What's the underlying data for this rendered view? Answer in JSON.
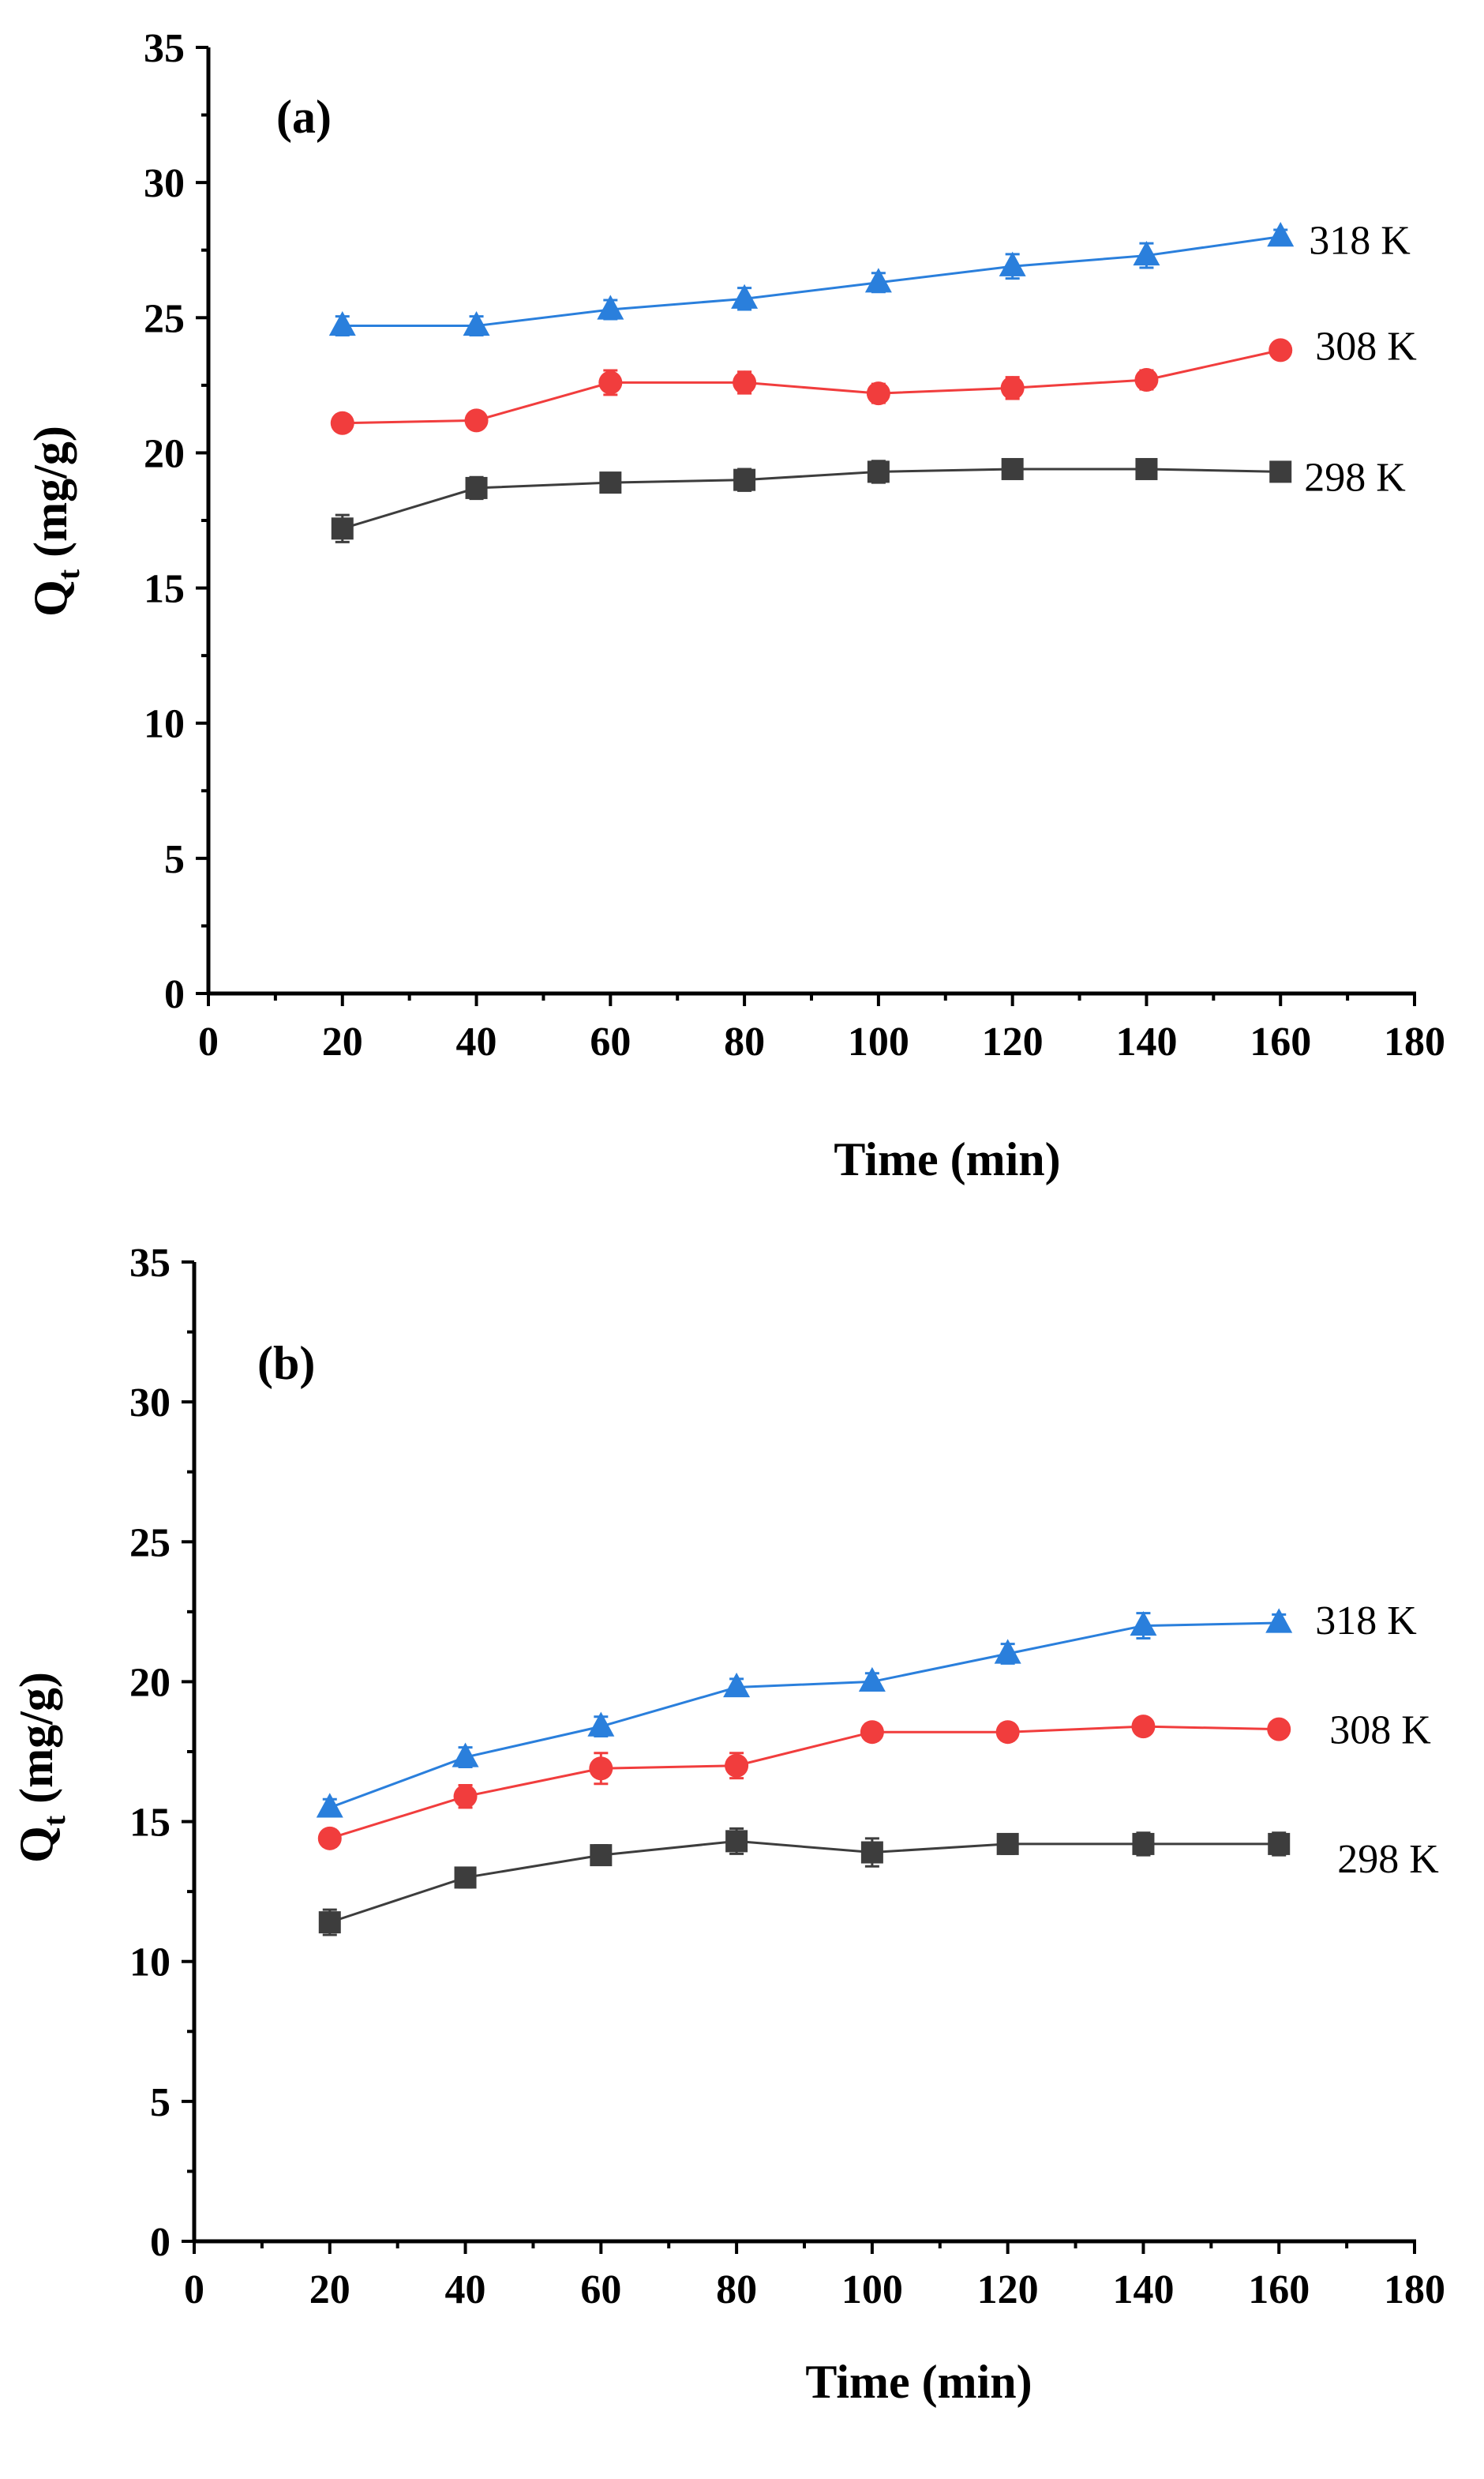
{
  "figure": {
    "colors": {
      "298 K": "#3d3d3d",
      "308 K": "#f13d3d",
      "318 K": "#2a7fdc"
    }
  },
  "chart_data": [
    {
      "type": "line",
      "panel_label": "(a)",
      "xlabel": "Time (min)",
      "ylabel_main": "Q",
      "ylabel_sub": "t",
      "ylabel_unit": " (mg/g)",
      "xlim": [
        0,
        180
      ],
      "ylim": [
        0,
        35
      ],
      "x_major_ticks": [
        0,
        20,
        40,
        60,
        80,
        100,
        120,
        140,
        160,
        180
      ],
      "y_major_ticks": [
        0,
        5,
        10,
        15,
        20,
        25,
        30,
        35
      ],
      "x": [
        20,
        40,
        60,
        80,
        100,
        120,
        140,
        160
      ],
      "series": [
        {
          "name": "318 K",
          "marker": "triangle",
          "values": [
            24.7,
            24.7,
            25.3,
            25.7,
            26.3,
            26.9,
            27.3,
            28.0
          ],
          "errors": [
            0.35,
            0.35,
            0.35,
            0.4,
            0.35,
            0.45,
            0.45,
            0.25
          ]
        },
        {
          "name": "308 K",
          "marker": "circle",
          "values": [
            21.1,
            21.2,
            22.6,
            22.6,
            22.2,
            22.4,
            22.7,
            23.8
          ],
          "errors": [
            0.3,
            0.3,
            0.45,
            0.4,
            0.35,
            0.4,
            0.35,
            0.3
          ]
        },
        {
          "name": "298 K",
          "marker": "square",
          "values": [
            17.2,
            18.7,
            18.9,
            19.0,
            19.3,
            19.4,
            19.4,
            19.3
          ],
          "errors": [
            0.5,
            0.4,
            0.35,
            0.4,
            0.4,
            0.35,
            0.35,
            0.35
          ]
        }
      ]
    },
    {
      "type": "line",
      "panel_label": "(b)",
      "xlabel": "Time (min)",
      "ylabel_main": "Q",
      "ylabel_sub": "t",
      "ylabel_unit": " (mg/g)",
      "xlim": [
        0,
        180
      ],
      "ylim": [
        0,
        35
      ],
      "x_major_ticks": [
        0,
        20,
        40,
        60,
        80,
        100,
        120,
        140,
        160,
        180
      ],
      "y_major_ticks": [
        0,
        5,
        10,
        15,
        20,
        25,
        30,
        35
      ],
      "x": [
        20,
        40,
        60,
        80,
        100,
        120,
        140,
        160
      ],
      "series": [
        {
          "name": "318 K",
          "marker": "triangle",
          "values": [
            15.5,
            17.3,
            18.4,
            19.8,
            20.0,
            21.0,
            22.0,
            22.1
          ],
          "errors": [
            0.3,
            0.35,
            0.35,
            0.3,
            0.3,
            0.35,
            0.45,
            0.3
          ]
        },
        {
          "name": "308 K",
          "marker": "circle",
          "values": [
            14.4,
            15.9,
            16.9,
            17.0,
            18.2,
            18.2,
            18.4,
            18.3
          ],
          "errors": [
            0.3,
            0.4,
            0.55,
            0.45,
            0.3,
            0.3,
            0.3,
            0.25
          ]
        },
        {
          "name": "298 K",
          "marker": "square",
          "values": [
            11.4,
            13.0,
            13.8,
            14.3,
            13.9,
            14.2,
            14.2,
            14.2
          ],
          "errors": [
            0.45,
            0.35,
            0.35,
            0.45,
            0.5,
            0.35,
            0.4,
            0.4
          ]
        }
      ]
    }
  ]
}
